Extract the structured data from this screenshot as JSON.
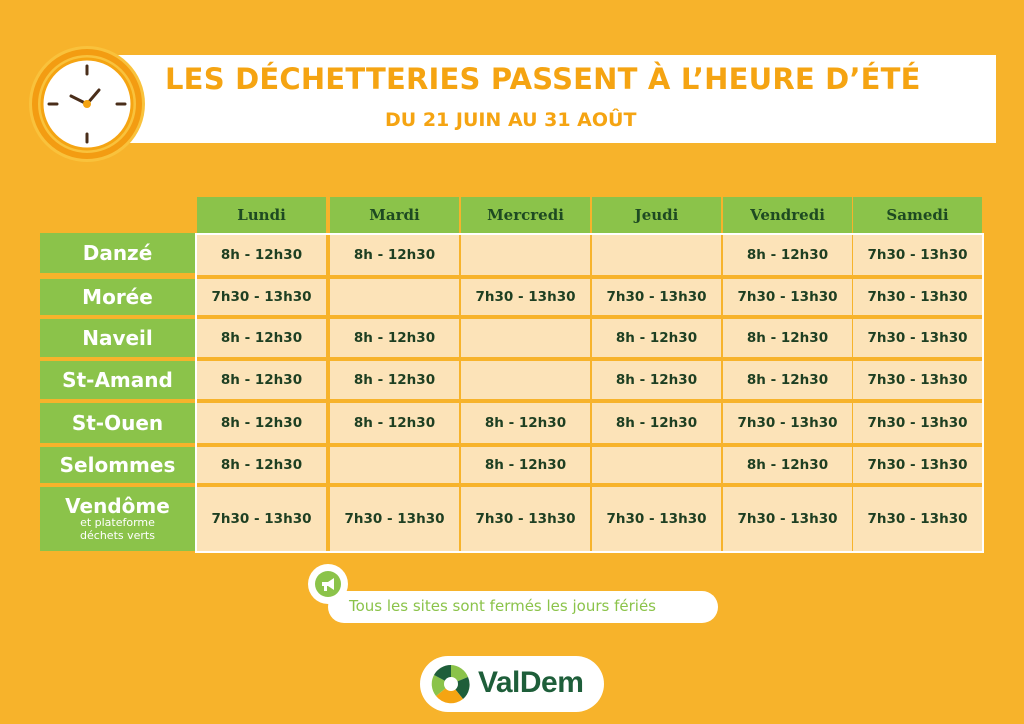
{
  "header": {
    "title": "LES DÉCHETTERIES PASSENT À L’HEURE D’ÉTÉ",
    "subtitle": "DU 21 JUIN AU 31 AOÛT",
    "icon": "clock-icon"
  },
  "schedule": {
    "days": [
      "Lundi",
      "Mardi",
      "Mercredi",
      "Jeudi",
      "Vendredi",
      "Samedi"
    ],
    "rows": [
      {
        "site": "Danzé",
        "site_note": "",
        "hours": [
          "8h - 12h30",
          "8h - 12h30",
          "",
          "",
          "8h - 12h30",
          "7h30 - 13h30"
        ]
      },
      {
        "site": "Morée",
        "site_note": "",
        "hours": [
          "7h30 - 13h30",
          "",
          "7h30 - 13h30",
          "7h30 - 13h30",
          "7h30 - 13h30",
          "7h30 - 13h30"
        ]
      },
      {
        "site": "Naveil",
        "site_note": "",
        "hours": [
          "8h - 12h30",
          "8h - 12h30",
          "",
          "8h - 12h30",
          "8h - 12h30",
          "7h30 - 13h30"
        ]
      },
      {
        "site": "St-Amand",
        "site_note": "",
        "hours": [
          "8h - 12h30",
          "8h - 12h30",
          "",
          "8h - 12h30",
          "8h - 12h30",
          "7h30 - 13h30"
        ]
      },
      {
        "site": "St-Ouen",
        "site_note": "",
        "hours": [
          "8h - 12h30",
          "8h - 12h30",
          "8h - 12h30",
          "8h - 12h30",
          "7h30 - 13h30",
          "7h30 - 13h30"
        ]
      },
      {
        "site": "Selommes",
        "site_note": "",
        "hours": [
          "8h - 12h30",
          "",
          "8h - 12h30",
          "",
          "8h - 12h30",
          "7h30 - 13h30"
        ]
      },
      {
        "site": "Vendôme",
        "site_note_line1": "et plateforme",
        "site_note_line2": "déchets verts",
        "hours": [
          "7h30 - 13h30",
          "7h30 - 13h30",
          "7h30 - 13h30",
          "7h30 - 13h30",
          "7h30 - 13h30",
          "7h30 - 13h30"
        ]
      }
    ]
  },
  "notice": {
    "text": "Tous les sites sont fermés les jours fériés",
    "icon": "megaphone-icon"
  },
  "logo": {
    "text": "ValDem",
    "icon": "valdem-logo-icon"
  },
  "colors": {
    "background": "#F7B32B",
    "title": "#F5A412",
    "green": "#8BC34A",
    "cell": "#FCE3B8",
    "dark_green": "#1E5E3A"
  }
}
